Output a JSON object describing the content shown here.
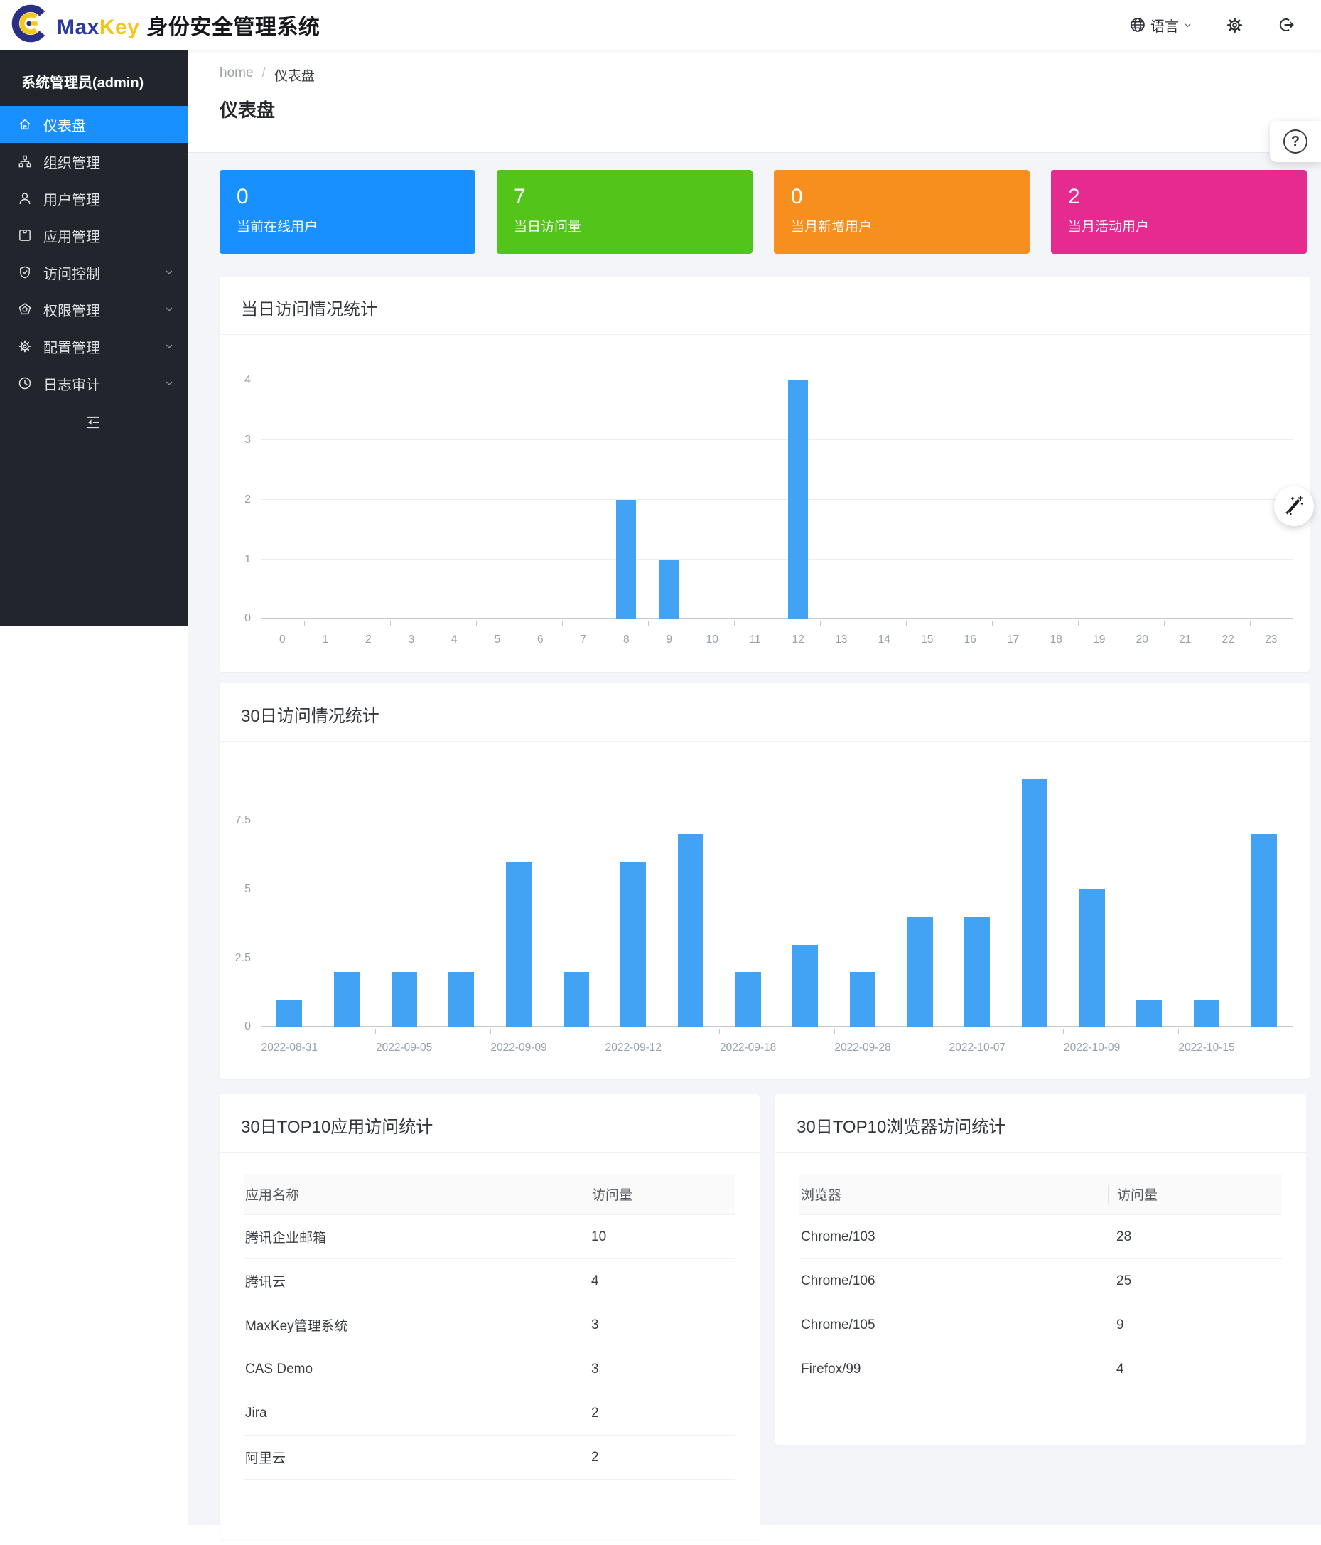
{
  "header": {
    "brand_max": "Max",
    "brand_key": "Key",
    "brand_title": "身份安全管理系统",
    "language_label": "语言"
  },
  "sidebar": {
    "user_label": "系统管理员(admin)",
    "active_color": "#1890ff",
    "items": [
      {
        "label": "仪表盘",
        "icon": "home",
        "active": true,
        "expandable": false
      },
      {
        "label": "组织管理",
        "icon": "org",
        "active": false,
        "expandable": false
      },
      {
        "label": "用户管理",
        "icon": "user",
        "active": false,
        "expandable": false
      },
      {
        "label": "应用管理",
        "icon": "app",
        "active": false,
        "expandable": false
      },
      {
        "label": "访问控制",
        "icon": "shield",
        "active": false,
        "expandable": true
      },
      {
        "label": "权限管理",
        "icon": "pentagon",
        "active": false,
        "expandable": true
      },
      {
        "label": "配置管理",
        "icon": "gear",
        "active": false,
        "expandable": true
      },
      {
        "label": "日志审计",
        "icon": "clock",
        "active": false,
        "expandable": true
      }
    ]
  },
  "breadcrumb": {
    "home": "home",
    "separator": "/",
    "current": "仪表盘"
  },
  "page": {
    "title": "仪表盘"
  },
  "stat_cards": [
    {
      "value": "0",
      "label": "当前在线用户",
      "color": "#1890ff"
    },
    {
      "value": "7",
      "label": "当日访问量",
      "color": "#52c41a"
    },
    {
      "value": "0",
      "label": "当月新增用户",
      "color": "#f78f1e"
    },
    {
      "value": "2",
      "label": "当月活动用户",
      "color": "#e52a90"
    }
  ],
  "chart_data": [
    {
      "type": "bar",
      "title": "当日访问情况统计",
      "categories": [
        "0",
        "1",
        "2",
        "3",
        "4",
        "5",
        "6",
        "7",
        "8",
        "9",
        "10",
        "11",
        "12",
        "13",
        "14",
        "15",
        "16",
        "17",
        "18",
        "19",
        "20",
        "21",
        "22",
        "23"
      ],
      "values": [
        0,
        0,
        0,
        0,
        0,
        0,
        0,
        0,
        2,
        1,
        0,
        0,
        4,
        0,
        0,
        0,
        0,
        0,
        0,
        0,
        0,
        0,
        0,
        0
      ],
      "xlabel": "",
      "ylabel": "",
      "ylim": [
        0,
        4
      ],
      "yticks": [
        0,
        1,
        2,
        3,
        4
      ],
      "bar_color": "#42a3f5",
      "grid": true,
      "legend": "none"
    },
    {
      "type": "bar",
      "title": "30日访问情况统计",
      "categories": [
        "2022-08-31",
        "",
        "2022-09-05",
        "",
        "2022-09-09",
        "",
        "2022-09-12",
        "",
        "2022-09-18",
        "",
        "2022-09-28",
        "",
        "2022-10-07",
        "",
        "2022-10-09",
        "",
        "2022-10-15",
        ""
      ],
      "values": [
        1,
        2,
        2,
        2,
        6,
        2,
        6,
        7,
        2,
        3,
        2,
        4,
        4,
        9,
        5,
        1,
        1,
        7
      ],
      "xlabel": "",
      "ylabel": "",
      "ylim": [
        0,
        10
      ],
      "yticks": [
        0,
        2.5,
        5,
        7.5
      ],
      "bar_color": "#42a3f5",
      "grid": true,
      "legend": "none"
    }
  ],
  "tables": [
    {
      "title": "30日TOP10应用访问统计",
      "headers": [
        "应用名称",
        "访问量"
      ],
      "rows": [
        [
          "腾讯企业邮箱",
          "10"
        ],
        [
          "腾讯云",
          "4"
        ],
        [
          "MaxKey管理系统",
          "3"
        ],
        [
          "CAS Demo",
          "3"
        ],
        [
          "Jira",
          "2"
        ],
        [
          "阿里云",
          "2"
        ]
      ]
    },
    {
      "title": "30日TOP10浏览器访问统计",
      "headers": [
        "浏览器",
        "访问量"
      ],
      "rows": [
        [
          "Chrome/103",
          "28"
        ],
        [
          "Chrome/106",
          "25"
        ],
        [
          "Chrome/105",
          "9"
        ],
        [
          "Firefox/99",
          "4"
        ]
      ]
    }
  ]
}
